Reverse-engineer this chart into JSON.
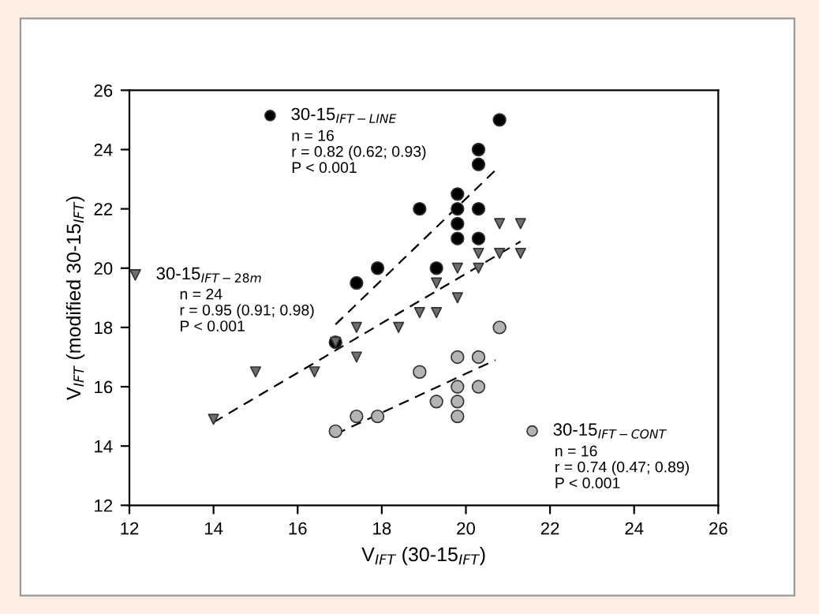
{
  "chart_data": {
    "type": "scatter",
    "xlabel": "V$_{IFT}$ (30-15$_{IFT}$)",
    "ylabel": "V$_{IFT}$ (modified 30-15$_{IFT}$)",
    "xlim": [
      12,
      26
    ],
    "xticks": [
      12,
      14,
      16,
      18,
      20,
      22,
      24,
      26
    ],
    "ylim": [
      12,
      26
    ],
    "yticks": [
      12,
      14,
      16,
      18,
      20,
      22,
      24,
      26
    ],
    "grid": false,
    "legend": "top left",
    "series": [
      {
        "name": "30-15$_{IFT−LINE}$",
        "color": "#000000",
        "marker": "circle",
        "x": [
          16.9,
          17.4,
          17.9,
          18.9,
          19.3,
          19.8,
          19.8,
          19.8,
          19.8,
          20.3,
          20.3,
          20.3,
          20.3,
          20.8
        ],
        "values": [
          17.5,
          19.5,
          20.0,
          22.0,
          20.0,
          22.5,
          22.0,
          21.5,
          21.0,
          22.0,
          21.0,
          24.0,
          23.5,
          25.0
        ]
      },
      {
        "name": "30-15$_{IFT−28m}$",
        "color": "#6e6e6e",
        "marker": "triangle",
        "x": [
          14.0,
          15.0,
          16.4,
          16.9,
          17.4,
          17.4,
          18.4,
          18.9,
          19.3,
          19.3,
          19.8,
          19.8,
          20.3,
          20.3,
          20.8,
          21.3,
          20.8,
          21.3
        ],
        "values": [
          14.9,
          16.5,
          16.5,
          17.5,
          18.0,
          17.0,
          18.0,
          18.5,
          18.5,
          19.5,
          19.0,
          20.0,
          20.0,
          20.5,
          20.5,
          20.5,
          21.5,
          21.5
        ]
      },
      {
        "name": "30-15$_{IFT−CONT}$",
        "color": "#b4b4b4",
        "marker": "circle",
        "x": [
          16.9,
          17.4,
          17.9,
          18.9,
          19.3,
          19.8,
          19.8,
          19.8,
          19.8,
          20.3,
          20.3,
          20.8
        ],
        "values": [
          14.5,
          15.0,
          15.0,
          16.5,
          15.5,
          17.0,
          16.0,
          15.5,
          15.0,
          17.0,
          16.0,
          18.0
        ]
      },
      {
        "type": "line",
        "line_style": "dashed",
        "color": "#000000",
        "marker": "none",
        "x": [
          16.9,
          20.7
        ],
        "values": [
          18.1,
          23.3
        ]
      },
      {
        "type": "line",
        "line_style": "dashed",
        "color": "#000000",
        "marker": "none",
        "x": [
          14.0,
          21.3
        ],
        "values": [
          14.8,
          20.9
        ]
      },
      {
        "type": "line",
        "line_style": "dashed",
        "color": "#000000",
        "marker": "none",
        "x": [
          16.9,
          20.7
        ],
        "values": [
          14.4,
          16.9
        ]
      }
    ],
    "annotations": [
      "n = 16\nr = 0.82 (0.62; 0.93)\nP < 0.001",
      "n = 24\nr = 0.95 (0.91; 0.98)\nP < 0.001",
      "n = 16\nr = 0.74 (0.47; 0.89)\nP < 0.001"
    ]
  }
}
